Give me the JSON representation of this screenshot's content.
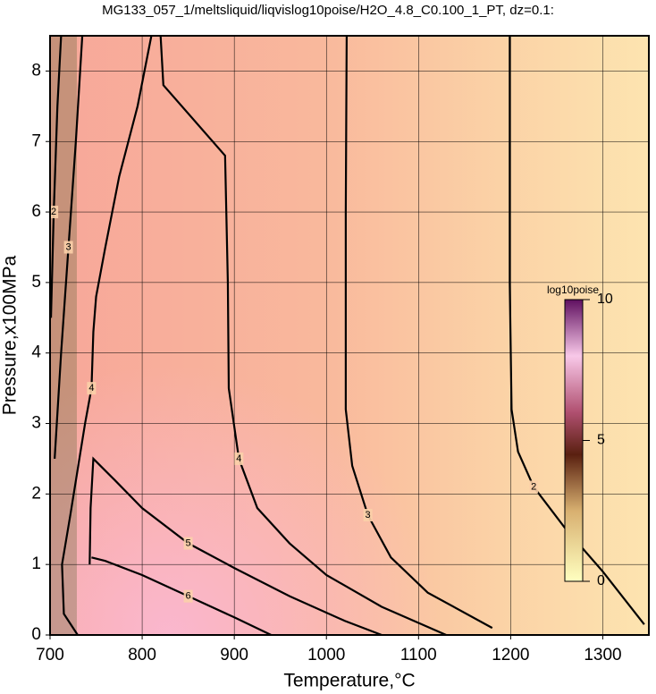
{
  "chart_data": {
    "type": "contour",
    "title": "MG133_057_1/meltsliquid/liqvislog10poise/H2O_4.8_C0.100_1_PT, dz=0.1:",
    "x_label": "Temperature,°C",
    "y_label": "Pressure,x100MPa",
    "xlim": [
      700,
      1350
    ],
    "ylim": [
      0,
      8.5
    ],
    "xticks": [
      700,
      800,
      900,
      1000,
      1100,
      1200,
      1300
    ],
    "yticks": [
      0,
      1,
      2,
      3,
      4,
      5,
      6,
      7,
      8
    ],
    "grid": true,
    "contours": [
      {
        "level": 2,
        "x": [
          1199,
          1199,
          1201,
          1208,
          1225,
          1260,
          1300,
          1345
        ],
        "y": [
          8.5,
          5.0,
          3.2,
          2.6,
          2.1,
          1.5,
          0.9,
          0.15
        ]
      },
      {
        "level": 3,
        "x": [
          1022,
          1021,
          1021,
          1028,
          1045,
          1070,
          1110,
          1180
        ],
        "y": [
          8.5,
          6.0,
          3.2,
          2.4,
          1.7,
          1.1,
          0.6,
          0.1
        ]
      },
      {
        "level": 4,
        "x": [
          820,
          823,
          890,
          893,
          894,
          905,
          925,
          960,
          1000,
          1060,
          1130
        ],
        "y": [
          8.5,
          7.8,
          6.8,
          5.0,
          3.5,
          2.5,
          1.8,
          1.3,
          0.85,
          0.4,
          0
        ]
      },
      {
        "level": 4,
        "x": [
          810,
          795,
          775,
          760,
          750,
          747,
          745,
          738,
          722,
          713,
          715,
          730
        ],
        "y": [
          8.5,
          7.5,
          6.5,
          5.5,
          4.8,
          4.3,
          3.5,
          3.0,
          1.7,
          1.0,
          0.3,
          0
        ]
      },
      {
        "level": 5,
        "x": [
          743,
          744,
          747,
          770,
          800,
          850,
          900,
          960,
          1020,
          1060
        ],
        "y": [
          1.0,
          1.8,
          2.5,
          2.2,
          1.8,
          1.3,
          0.95,
          0.55,
          0.2,
          0
        ]
      },
      {
        "level": 6,
        "x": [
          745,
          760,
          800,
          850,
          900,
          940
        ],
        "y": [
          1.1,
          1.05,
          0.85,
          0.55,
          0.25,
          0
        ]
      },
      {
        "level": 3,
        "x": [
          735,
          728,
          720,
          712,
          705
        ],
        "y": [
          8.5,
          7.0,
          5.5,
          4.0,
          2.5
        ]
      },
      {
        "level": 2,
        "x": [
          712,
          708,
          704,
          701
        ],
        "y": [
          8.5,
          7.5,
          6.0,
          4.5
        ]
      }
    ],
    "colorbar": {
      "label": "log10poise",
      "lim": [
        0,
        10
      ],
      "ticks": [
        0,
        5,
        10
      ]
    }
  }
}
